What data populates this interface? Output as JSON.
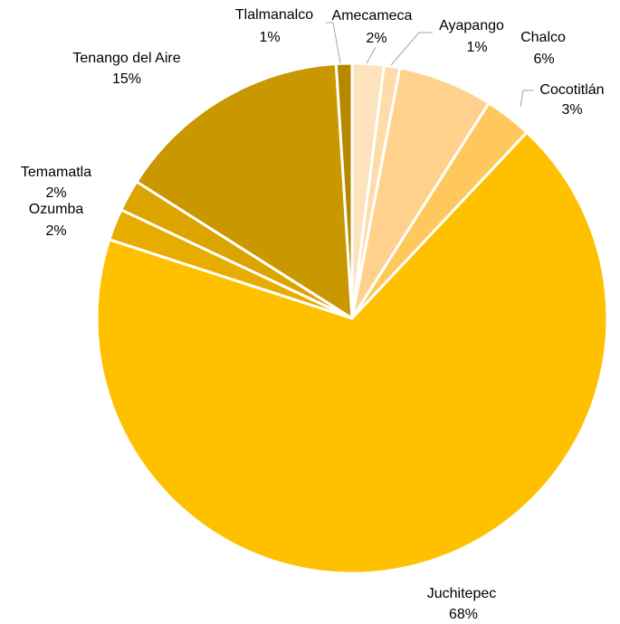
{
  "chart_data": {
    "type": "pie",
    "categories": [
      "Amecameca",
      "Ayapango",
      "Chalco",
      "Cocotitlán",
      "Juchitepec",
      "Ozumba",
      "Temamatla",
      "Tenango del Aire",
      "Tlalmanalco"
    ],
    "values": [
      2,
      1,
      6,
      3,
      68,
      2,
      2,
      15,
      1
    ],
    "value_labels": [
      "2%",
      "1%",
      "6%",
      "3%",
      "68%",
      "2%",
      "2%",
      "15%",
      "1%"
    ],
    "colors": [
      "#fde3bd",
      "#fddcaa",
      "#ffd18d",
      "#ffc85c",
      "#ffc000",
      "#e6ad00",
      "#dba400",
      "#c99800",
      "#b58800"
    ]
  }
}
